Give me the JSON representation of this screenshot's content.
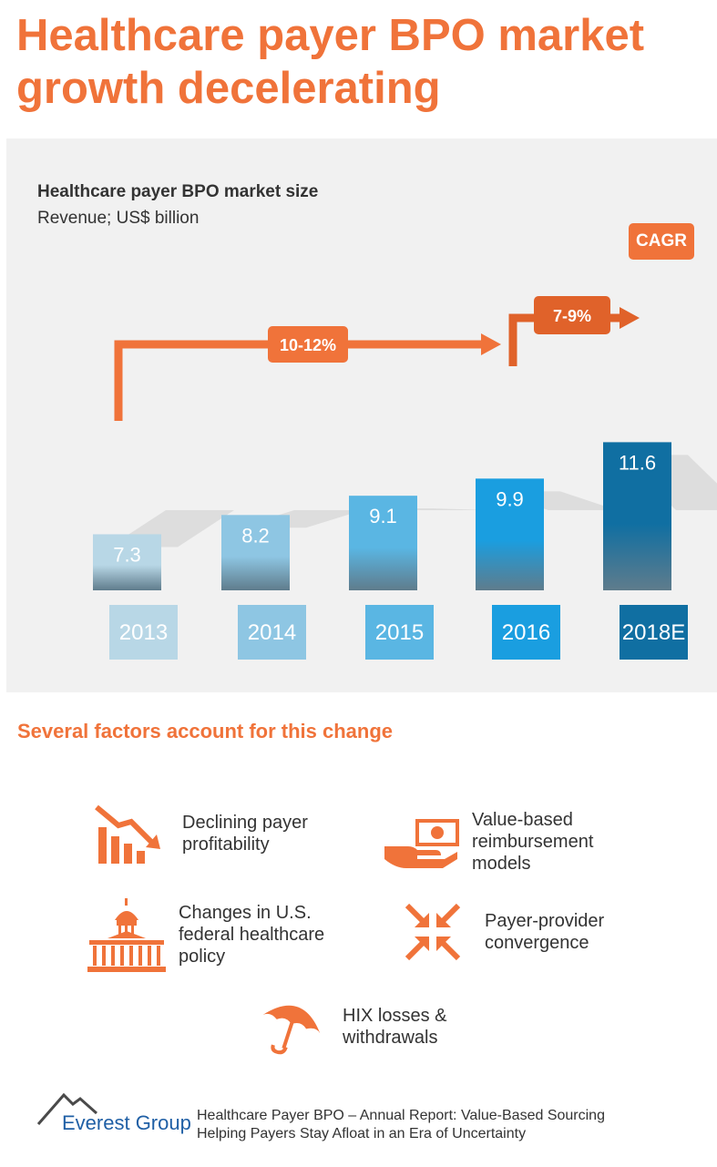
{
  "page": {
    "title_line1": "Healthcare payer BPO market",
    "title_line2": "growth decelerating"
  },
  "chart_data": {
    "type": "bar",
    "title": "Healthcare payer BPO market size",
    "subtitle": "Revenue; US$ billion",
    "categories": [
      "2013",
      "2014",
      "2015",
      "2016",
      "2018E"
    ],
    "values": [
      7.3,
      8.2,
      9.1,
      9.9,
      11.6
    ],
    "value_labels": [
      "7.3",
      "8.2",
      "9.1",
      "9.9",
      "11.6"
    ],
    "xlabel": "",
    "ylabel": "",
    "ylim": [
      0,
      12
    ],
    "cagr_label": "CAGR",
    "annotations": [
      {
        "label": "10-12%",
        "from": "2013",
        "to": "2016"
      },
      {
        "label": "7-9%",
        "from": "2016",
        "to": "2018E"
      }
    ],
    "bar_colors": [
      "#b8d7e6",
      "#8ec6e3",
      "#5ab6e3",
      "#1a9ee0",
      "#106fa2"
    ],
    "accent_color": "#f0733a"
  },
  "factors": {
    "heading": "Several factors account for this change",
    "items": [
      {
        "label": "Declining payer\nprofitability",
        "icon": "declining-chart-icon"
      },
      {
        "label": "Value-based\nreimbursement\nmodels",
        "icon": "money-hand-icon"
      },
      {
        "label": "Changes in U.S.\nfederal healthcare\npolicy",
        "icon": "capitol-building-icon"
      },
      {
        "label": "Payer-provider\nconvergence",
        "icon": "converging-arrows-icon"
      },
      {
        "label": "HIX losses &\nwithdrawals",
        "icon": "umbrella-icon"
      }
    ]
  },
  "footer": {
    "brand": "Everest Group",
    "report_line1": "Healthcare Payer BPO – Annual Report: Value-Based Sourcing",
    "report_line2": "Helping Payers Stay Afloat in an Era of Uncertainty"
  }
}
